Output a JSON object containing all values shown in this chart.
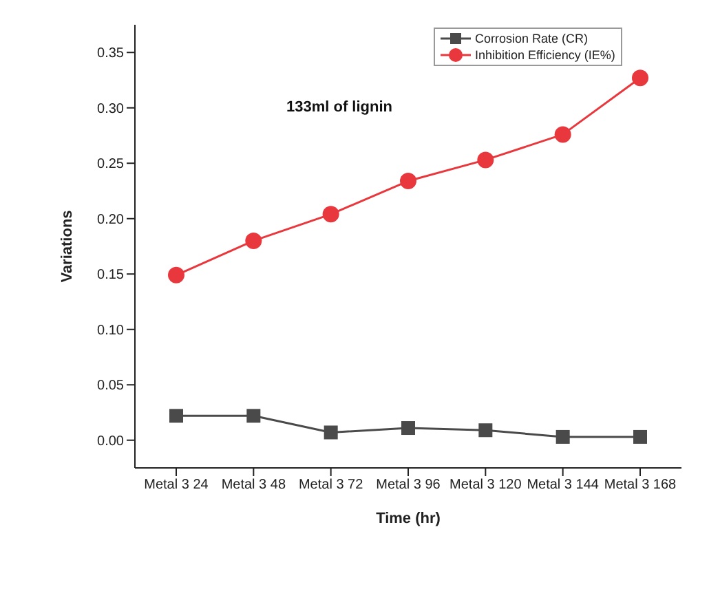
{
  "chart_data": {
    "type": "line",
    "xlabel": "Time (hr)",
    "ylabel": "Variations",
    "annotations": [
      "133ml of lignin"
    ],
    "categories": [
      "Metal 3 24",
      "Metal 3 48",
      "Metal 3 72",
      "Metal 3 96",
      "Metal 3 120",
      "Metal 3 144",
      "Metal 3 168"
    ],
    "series": [
      {
        "name": "Corrosion Rate (CR)",
        "color": "#4a4a4a",
        "marker": "square",
        "values": [
          0.022,
          0.022,
          0.007,
          0.011,
          0.009,
          0.003,
          0.003
        ]
      },
      {
        "name": "Inhibition Efficiency (IE%)",
        "color": "#e8383d",
        "marker": "circle",
        "values": [
          0.149,
          0.18,
          0.204,
          0.234,
          0.253,
          0.276,
          0.327
        ]
      }
    ],
    "ylim": [
      -0.025,
      0.375
    ],
    "yticks": [
      {
        "value": 0,
        "label": "0.00"
      },
      0.05,
      {
        "value": 0.1,
        "label": "0.10"
      },
      0.15,
      {
        "value": 0.2,
        "label": "0.20"
      },
      0.25,
      {
        "value": 0.3,
        "label": "0.30"
      },
      0.35
    ],
    "grid": false,
    "legend": "top right"
  }
}
